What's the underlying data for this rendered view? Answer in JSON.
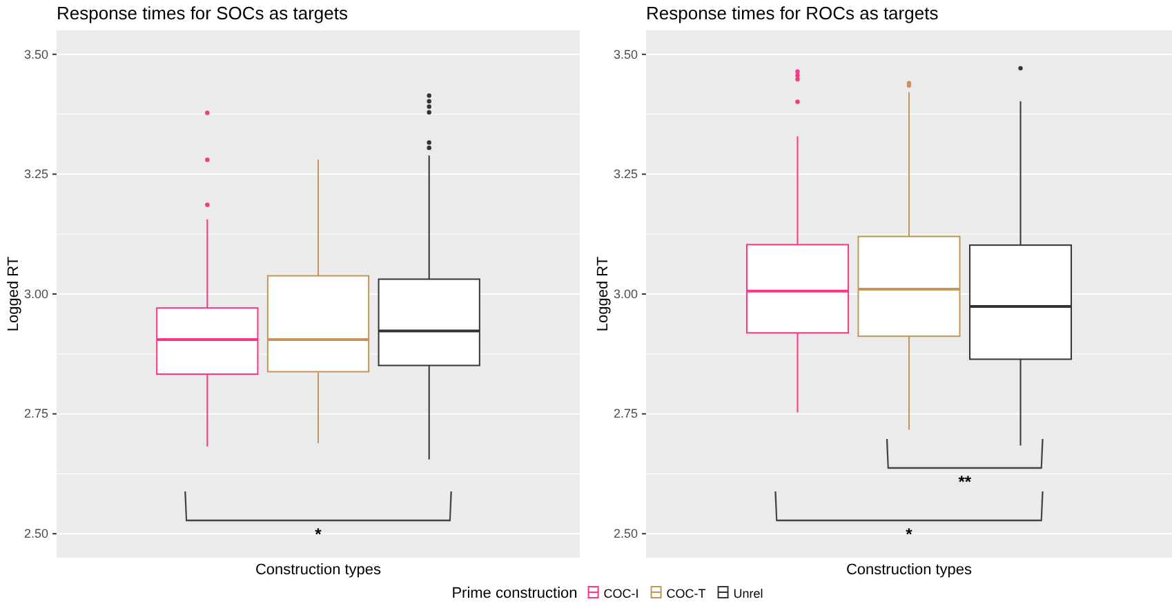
{
  "chart_data": [
    {
      "type": "box",
      "title": "Response times for SOCs as targets",
      "xlabel": "Construction types",
      "ylabel": "Logged RT",
      "categories": [
        null
      ],
      "ylim": [
        2.45,
        3.55
      ],
      "yticks": [
        {
          "value": 2.5,
          "label": "2.50"
        },
        {
          "value": 2.75,
          "label": "2.75"
        },
        {
          "value": 3.0,
          "label": "3.00"
        },
        {
          "value": 3.25,
          "label": "3.25"
        },
        {
          "value": 3.5,
          "label": "3.50"
        }
      ],
      "grid": true,
      "legend": "bottom",
      "legend_title": "Prime construction",
      "annotations": [
        "*"
      ],
      "series": [
        {
          "name": "COC-I",
          "color": "#ff3388",
          "boxes": [
            {
              "low": 2.682,
              "q1": 2.833,
              "median": 2.905,
              "q3": 2.971,
              "high": 3.156,
              "outliers": [
                3.186,
                3.28,
                3.378
              ]
            }
          ]
        },
        {
          "name": "COC-T",
          "color": "#c4955a",
          "boxes": [
            {
              "low": 2.689,
              "q1": 2.838,
              "median": 2.905,
              "q3": 3.038,
              "high": 3.28
            }
          ]
        },
        {
          "name": "Unrel",
          "color": "#333333",
          "boxes": [
            {
              "low": 2.655,
              "q1": 2.851,
              "median": 2.923,
              "q3": 3.031,
              "high": 3.289,
              "outliers": [
                3.305,
                3.316,
                3.379,
                3.391,
                3.402,
                3.414
              ]
            }
          ]
        }
      ]
    },
    {
      "type": "box",
      "title": "Response times for ROCs as targets",
      "xlabel": "Construction types",
      "ylabel": "Logged RT",
      "categories": [
        null
      ],
      "ylim": [
        2.45,
        3.55
      ],
      "yticks": [
        {
          "value": 2.5,
          "label": "2.50"
        },
        {
          "value": 2.75,
          "label": "2.75"
        },
        {
          "value": 3.0,
          "label": "3.00"
        },
        {
          "value": 3.25,
          "label": "3.25"
        },
        {
          "value": 3.5,
          "label": "3.50"
        }
      ],
      "grid": true,
      "annotations": [
        "**",
        "*"
      ],
      "series": [
        {
          "color": "#ff3388",
          "boxes": [
            {
              "low": 2.753,
              "q1": 2.919,
              "median": 3.006,
              "q3": 3.103,
              "high": 3.329,
              "outliers": [
                3.401,
                3.448,
                3.456,
                3.464
              ]
            }
          ]
        },
        {
          "color": "#c4955a",
          "boxes": [
            {
              "low": 2.717,
              "q1": 2.912,
              "median": 3.01,
              "q3": 3.12,
              "high": 3.421,
              "outliers": [
                3.435,
                3.44
              ]
            }
          ]
        },
        {
          "color": "#333333",
          "boxes": [
            {
              "low": 2.684,
              "q1": 2.864,
              "median": 2.974,
              "q3": 3.102,
              "high": 3.402,
              "outliers": [
                3.471
              ]
            }
          ]
        }
      ]
    }
  ]
}
